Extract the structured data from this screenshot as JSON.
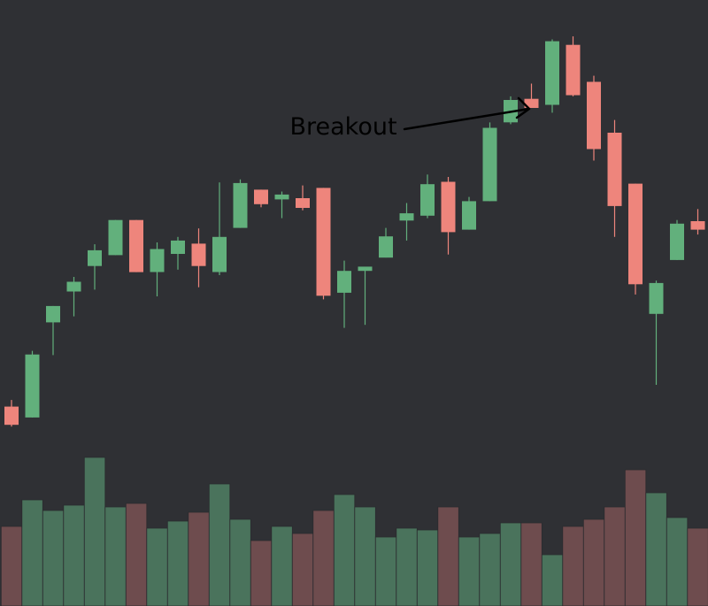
{
  "annotation": {
    "label": "Breakout"
  },
  "colors": {
    "background": "#2f3034",
    "up_body": "#62b07c",
    "down_body": "#ee857c",
    "up_volume": "#4a735c",
    "down_volume": "#6e4c4e",
    "annotation": "#000000"
  },
  "chart_data": {
    "type": "candlestick",
    "price_range": [
      0,
      100
    ],
    "volume_range": [
      0,
      100
    ],
    "candles": [
      {
        "open": 32.9,
        "high": 34.0,
        "low": 29.6,
        "close": 29.9,
        "volume": 45
      },
      {
        "open": 31.1,
        "high": 42.1,
        "low": 31.1,
        "close": 41.5,
        "volume": 60
      },
      {
        "open": 46.8,
        "high": 49.5,
        "low": 41.4,
        "close": 49.5,
        "volume": 54
      },
      {
        "open": 51.9,
        "high": 54.3,
        "low": 47.8,
        "close": 53.5,
        "volume": 57
      },
      {
        "open": 56.1,
        "high": 59.7,
        "low": 52.2,
        "close": 58.7,
        "volume": 84
      },
      {
        "open": 57.9,
        "high": 63.7,
        "low": 57.9,
        "close": 63.7,
        "volume": 56
      },
      {
        "open": 63.7,
        "high": 63.7,
        "low": 55.1,
        "close": 55.1,
        "volume": 58
      },
      {
        "open": 55.1,
        "high": 60.0,
        "low": 51.1,
        "close": 58.9,
        "volume": 44
      },
      {
        "open": 58.1,
        "high": 60.9,
        "low": 55.5,
        "close": 60.3,
        "volume": 48
      },
      {
        "open": 59.8,
        "high": 62.3,
        "low": 52.6,
        "close": 56.1,
        "volume": 53
      },
      {
        "open": 55.1,
        "high": 69.9,
        "low": 54.6,
        "close": 60.9,
        "volume": 69
      },
      {
        "open": 62.4,
        "high": 70.4,
        "low": 62.4,
        "close": 69.8,
        "volume": 49
      },
      {
        "open": 68.7,
        "high": 68.7,
        "low": 65.8,
        "close": 66.3,
        "volume": 37
      },
      {
        "open": 67.1,
        "high": 68.4,
        "low": 64.0,
        "close": 67.9,
        "volume": 45
      },
      {
        "open": 67.3,
        "high": 69.4,
        "low": 65.3,
        "close": 65.7,
        "volume": 41
      },
      {
        "open": 69.0,
        "high": 69.0,
        "low": 50.6,
        "close": 51.2,
        "volume": 54
      },
      {
        "open": 51.7,
        "high": 57.0,
        "low": 45.9,
        "close": 55.3,
        "volume": 63
      },
      {
        "open": 55.3,
        "high": 55.9,
        "low": 46.4,
        "close": 56.0,
        "volume": 56
      },
      {
        "open": 57.5,
        "high": 62.4,
        "low": 57.5,
        "close": 61.0,
        "volume": 39
      },
      {
        "open": 63.6,
        "high": 66.5,
        "low": 60.3,
        "close": 64.8,
        "volume": 44
      },
      {
        "open": 64.4,
        "high": 71.2,
        "low": 64.0,
        "close": 69.6,
        "volume": 43
      },
      {
        "open": 70.0,
        "high": 70.8,
        "low": 58.0,
        "close": 61.7,
        "volume": 56
      },
      {
        "open": 62.1,
        "high": 67.5,
        "low": 62.1,
        "close": 66.8,
        "volume": 39
      },
      {
        "open": 66.8,
        "high": 79.8,
        "low": 66.8,
        "close": 78.9,
        "volume": 41
      },
      {
        "open": 79.8,
        "high": 84.1,
        "low": 79.5,
        "close": 83.5,
        "volume": 47
      },
      {
        "open": 83.7,
        "high": 86.2,
        "low": 82.2,
        "close": 82.2,
        "volume": 47
      },
      {
        "open": 82.7,
        "high": 93.5,
        "low": 81.4,
        "close": 93.2,
        "volume": 29
      },
      {
        "open": 92.6,
        "high": 94.0,
        "low": 84.1,
        "close": 84.3,
        "volume": 45
      },
      {
        "open": 86.5,
        "high": 87.5,
        "low": 73.5,
        "close": 75.4,
        "volume": 49
      },
      {
        "open": 78.1,
        "high": 80.2,
        "low": 60.9,
        "close": 66.0,
        "volume": 56
      },
      {
        "open": 69.7,
        "high": 69.7,
        "low": 51.4,
        "close": 53.1,
        "volume": 77
      },
      {
        "open": 48.2,
        "high": 53.7,
        "low": 36.5,
        "close": 53.3,
        "volume": 64
      },
      {
        "open": 57.1,
        "high": 63.7,
        "low": 57.1,
        "close": 63.1,
        "volume": 50
      },
      {
        "open": 63.5,
        "high": 65.5,
        "low": 61.3,
        "close": 62.1,
        "volume": 44
      }
    ]
  }
}
